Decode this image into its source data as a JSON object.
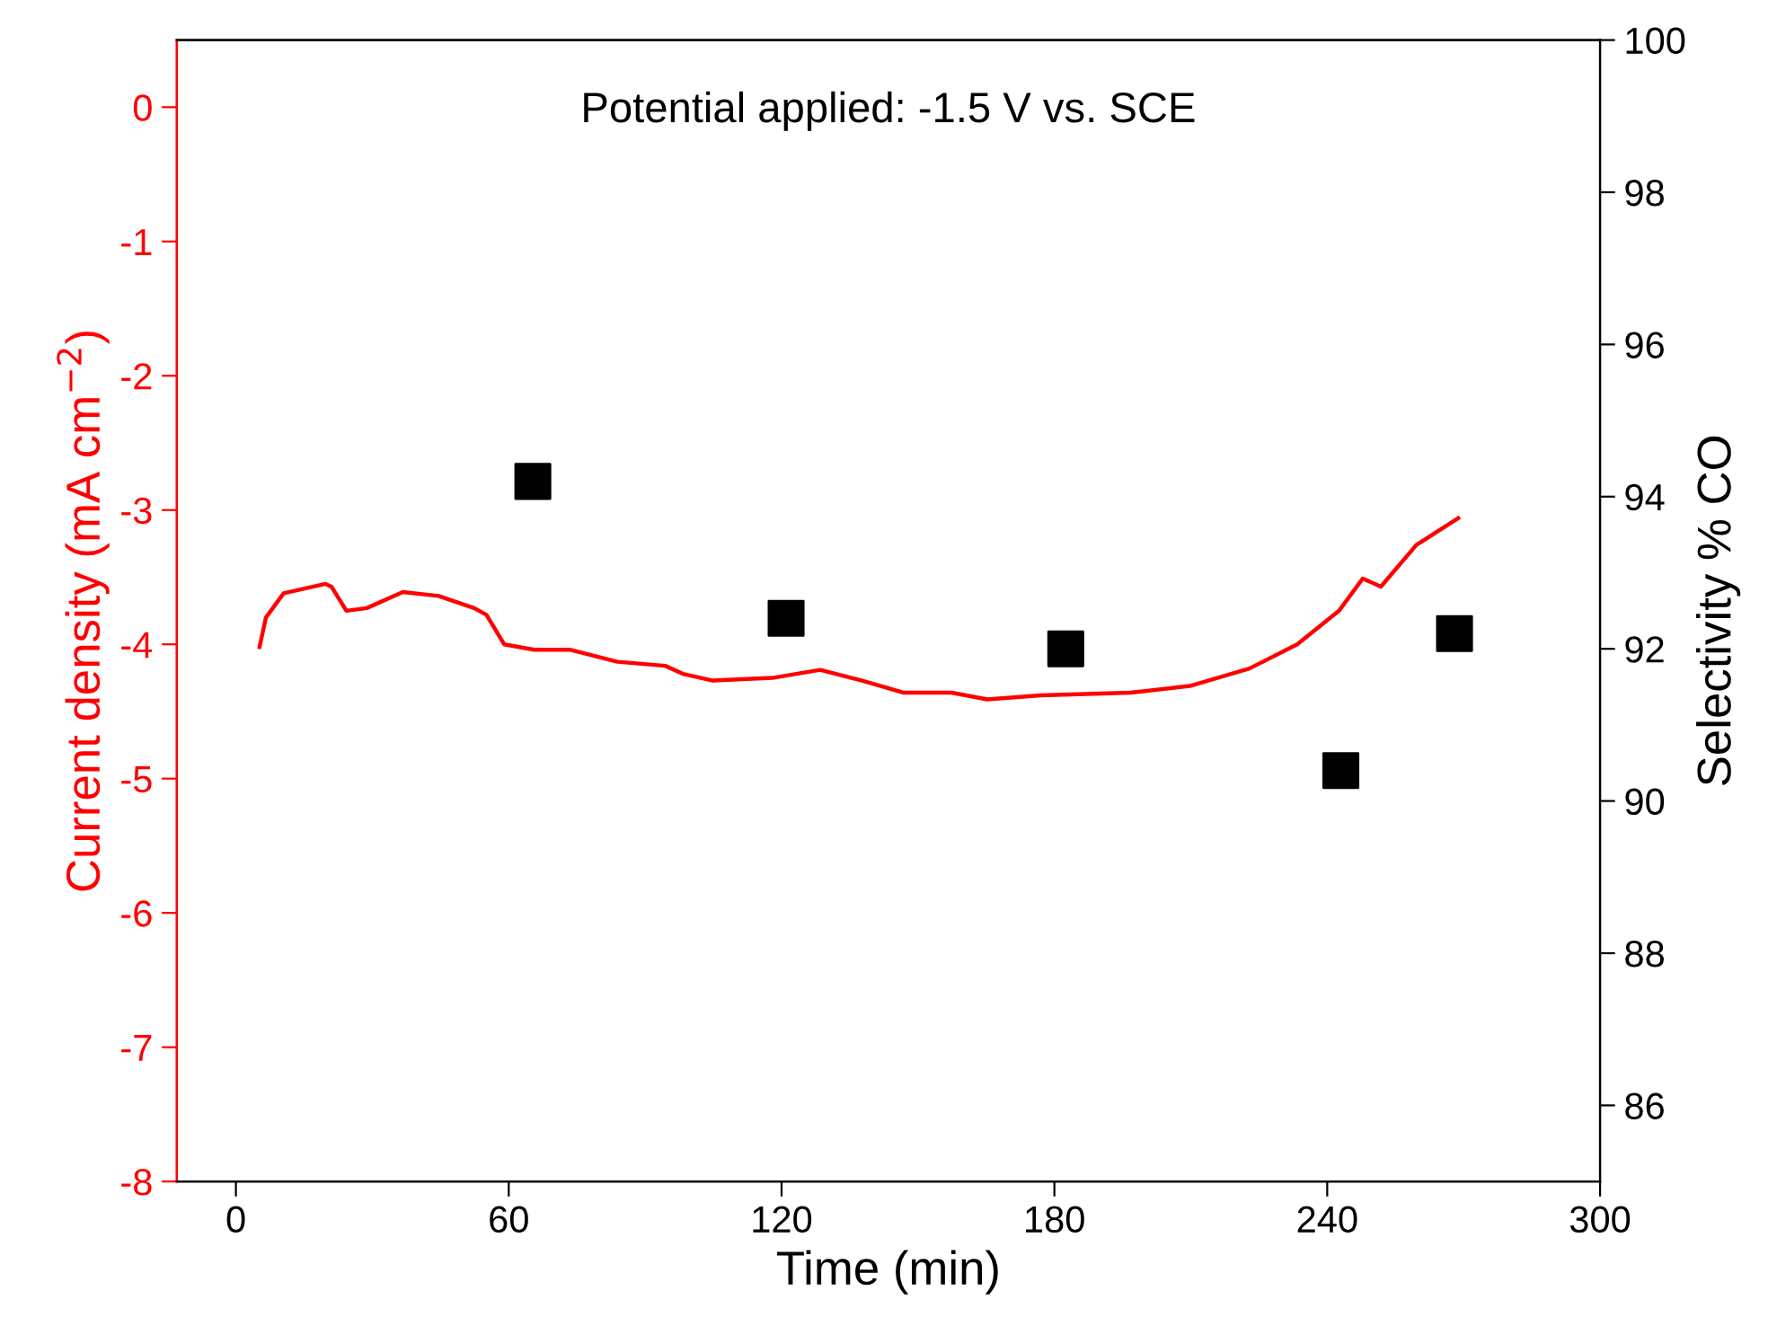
{
  "chart_data": {
    "type": "line",
    "xlabel": "Time (min)",
    "ylabel": "Current density (mA cm$^{−2}$)",
    "y2label": "Selectivity % CO",
    "annotations": [
      "Potential applied: -1.5 V vs. SCE"
    ],
    "xlim": [
      -13,
      300
    ],
    "xticks": [
      0,
      60,
      120,
      180,
      240,
      300
    ],
    "ylim": [
      -8,
      0.5
    ],
    "yticks": [
      -8,
      -7,
      -6,
      -5,
      -4,
      -3,
      -2,
      -1,
      0
    ],
    "y2lim": [
      85,
      100
    ],
    "y2ticks": [
      86,
      88,
      90,
      92,
      94,
      96,
      98,
      100
    ],
    "grid": false,
    "legend": false,
    "series": [
      {
        "color": "#ff0000",
        "marker": "none",
        "line_style": "solid",
        "x": [
          5.2,
          6.6,
          10.5,
          19.7,
          21,
          24.3,
          28.8,
          36.7,
          44.6,
          52.4,
          55.1,
          59,
          65.6,
          73.4,
          83.9,
          94.4,
          98.3,
          104.9,
          118,
          128.5,
          137.7,
          146.9,
          157.4,
          165.2,
          177,
          196.7,
          209.8,
          222.9,
          233.4,
          242.6,
          247.8,
          251.8,
          259.6,
          268.8
        ],
        "values": [
          -4.02,
          -3.8,
          -3.62,
          -3.55,
          -3.57,
          -3.75,
          -3.73,
          -3.61,
          -3.64,
          -3.73,
          -3.78,
          -4.0,
          -4.04,
          -4.04,
          -4.13,
          -4.16,
          -4.22,
          -4.27,
          -4.25,
          -4.19,
          -4.27,
          -4.36,
          -4.36,
          -4.41,
          -4.38,
          -4.36,
          -4.31,
          -4.18,
          -4.0,
          -3.75,
          -3.51,
          -3.57,
          -3.26,
          -3.06
        ]
      },
      {
        "type": "scatter",
        "axis": "y2",
        "color": "#000000",
        "marker": "square",
        "x": [
          65.3,
          121,
          182.5,
          243,
          268
        ],
        "values": [
          94.2,
          92.4,
          92.0,
          90.4,
          92.2
        ]
      }
    ]
  }
}
